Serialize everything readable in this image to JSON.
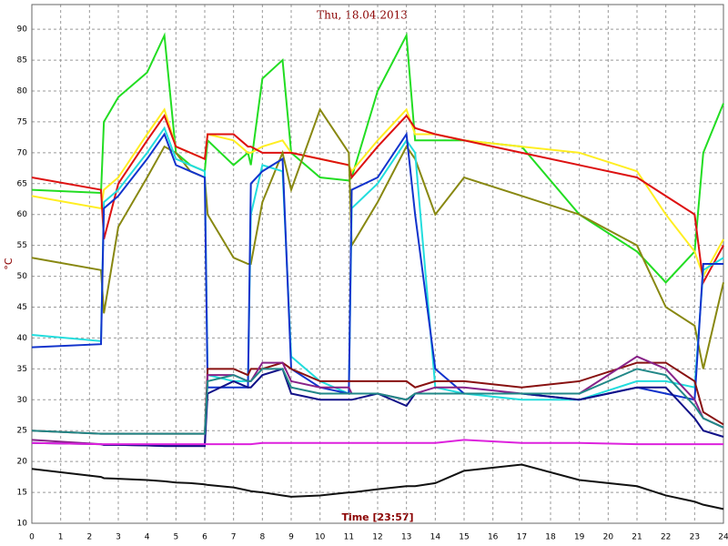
{
  "chart_data": {
    "type": "line",
    "title": "Thu, 18.04.2013",
    "x_label": "Time [23:57]",
    "y_label": "°C",
    "x": [
      0,
      2.4,
      2.5,
      3,
      4,
      4.6,
      5,
      5.5,
      6,
      6.1,
      7,
      7.5,
      7.6,
      8,
      8.7,
      9,
      10,
      11,
      11.1,
      12,
      13,
      13.3,
      14,
      15,
      17,
      19,
      21,
      22,
      23,
      23.3,
      24
    ],
    "series": [
      {
        "color": "#22dd22",
        "values": [
          64,
          63.5,
          75,
          79,
          83,
          89,
          70,
          68,
          67,
          72,
          68,
          70,
          68,
          82,
          85,
          70,
          66,
          65.5,
          66,
          80,
          89,
          72,
          72,
          72,
          71,
          60,
          54,
          49,
          54,
          70,
          78
        ]
      },
      {
        "color": "#ffee22",
        "values": [
          63,
          61,
          64,
          66,
          73,
          77,
          71,
          70,
          69,
          73,
          72,
          70,
          70,
          71,
          72,
          70,
          69,
          68,
          67,
          72,
          77,
          73,
          73,
          72,
          71,
          70,
          67,
          60,
          54,
          50,
          56
        ]
      },
      {
        "color": "#dd1111",
        "values": [
          66,
          64,
          56,
          65,
          72,
          76,
          71,
          70,
          69,
          73,
          73,
          71,
          71,
          70,
          70,
          70,
          69,
          68,
          66,
          71,
          76,
          74,
          73,
          72,
          70,
          68,
          66,
          63,
          60,
          49,
          55
        ]
      },
      {
        "color": "#888811",
        "values": [
          53,
          51,
          44,
          58,
          66,
          71,
          70,
          67,
          66,
          60,
          53,
          52,
          52,
          62,
          70,
          64,
          77,
          70,
          55,
          62,
          71,
          69,
          60,
          66,
          63,
          60,
          55,
          45,
          42,
          35,
          49
        ]
      },
      {
        "color": "#22dddd",
        "values": [
          40.5,
          39.5,
          62,
          64,
          70,
          74,
          69,
          68,
          67,
          34,
          33,
          33,
          60,
          68,
          67,
          37,
          33,
          31,
          61,
          65,
          72,
          70,
          32,
          31,
          30,
          30,
          33,
          33,
          32,
          51,
          53
        ]
      },
      {
        "color": "#1133cc",
        "values": [
          38.5,
          39,
          61,
          63,
          69,
          73,
          68,
          67,
          66,
          32,
          32,
          32,
          65,
          67,
          69,
          35,
          32,
          31,
          64,
          66,
          73,
          60,
          35,
          31,
          31,
          30,
          32,
          31,
          30,
          52,
          52
        ]
      },
      {
        "color": "#881111",
        "values": [
          25,
          24.5,
          24.5,
          24.5,
          24.5,
          24.5,
          24.5,
          24.5,
          24.5,
          35,
          35,
          34,
          35,
          35,
          36,
          35,
          33,
          33,
          33,
          33,
          33,
          32,
          33,
          33,
          32,
          33,
          36,
          36,
          33,
          28,
          26
        ]
      },
      {
        "color": "#882288",
        "values": [
          23.5,
          22.8,
          22.7,
          22.7,
          22.6,
          22.5,
          22.5,
          22.5,
          22.5,
          34,
          34,
          33,
          33,
          36,
          36,
          33,
          32,
          32,
          31,
          31,
          30,
          31,
          32,
          32,
          31,
          31,
          37,
          35,
          30,
          27,
          25.5
        ]
      },
      {
        "color": "#111188",
        "values": [
          23,
          22.8,
          22.7,
          22.7,
          22.6,
          22.5,
          22.5,
          22.5,
          22.5,
          31,
          33,
          32,
          32,
          34,
          35,
          31,
          30,
          30,
          30,
          31,
          29,
          31,
          31,
          31,
          31,
          30,
          32,
          32,
          27,
          25,
          24
        ]
      },
      {
        "color": "#228888",
        "values": [
          25,
          24.5,
          24.5,
          24.5,
          24.5,
          24.5,
          24.5,
          24.5,
          24.5,
          33,
          34,
          33,
          33,
          35,
          35,
          32,
          31,
          31,
          31,
          31,
          30,
          31,
          31,
          31,
          31,
          31,
          35,
          34,
          29,
          27,
          25.5
        ]
      },
      {
        "color": "#dd22dd",
        "values": [
          23,
          22.8,
          22.8,
          22.8,
          22.8,
          22.8,
          22.8,
          22.8,
          22.8,
          22.8,
          22.8,
          22.8,
          22.8,
          23,
          23,
          23,
          23,
          23,
          23,
          23,
          23,
          23,
          23,
          23.5,
          23,
          23,
          22.8,
          22.8,
          22.8,
          22.8,
          22.8
        ]
      },
      {
        "color": "#111111",
        "values": [
          18.8,
          17.5,
          17.3,
          17.2,
          17,
          16.8,
          16.6,
          16.5,
          16.3,
          16.2,
          15.8,
          15.3,
          15.2,
          15,
          14.5,
          14.3,
          14.5,
          15,
          15,
          15.5,
          16,
          16,
          16.5,
          18.5,
          19.5,
          17,
          16,
          14.5,
          13.5,
          13,
          12.3
        ]
      }
    ],
    "xlim": [
      0,
      24
    ],
    "xticks": [
      0,
      1,
      2,
      3,
      4,
      5,
      6,
      7,
      8,
      9,
      10,
      11,
      12,
      13,
      14,
      15,
      16,
      17,
      18,
      19,
      20,
      21,
      22,
      23,
      24
    ],
    "ylim": [
      10,
      94
    ],
    "yticks": [
      10,
      15,
      20,
      25,
      30,
      35,
      40,
      45,
      50,
      55,
      60,
      65,
      70,
      75,
      80,
      85,
      90
    ],
    "grid": true
  }
}
